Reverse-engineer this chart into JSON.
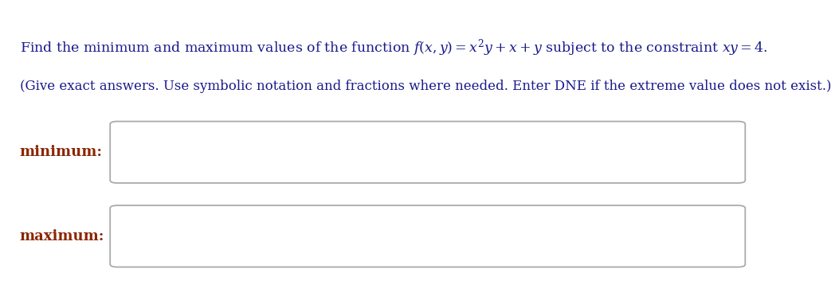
{
  "line1": "Find the minimum and maximum values of the function $f(x, y) = x^2y + x + y$ subject to the constraint $xy = 4$.",
  "line2": "(Give exact answers. Use symbolic notation and fractions where needed. Enter DNE if the extreme value does not exist.)",
  "label_minimum": "minimum:",
  "label_maximum": "maximum:",
  "text_color_main": "#1a1a8c",
  "text_color_labels": "#8b2500",
  "bg_color": "#ffffff",
  "box_bg": "#ffffff",
  "box_edge": "#aaaaaa",
  "line1_fontsize": 12.5,
  "line2_fontsize": 12.0,
  "label_fontsize": 13.0,
  "fig_width": 9.29,
  "fig_height": 3.52
}
